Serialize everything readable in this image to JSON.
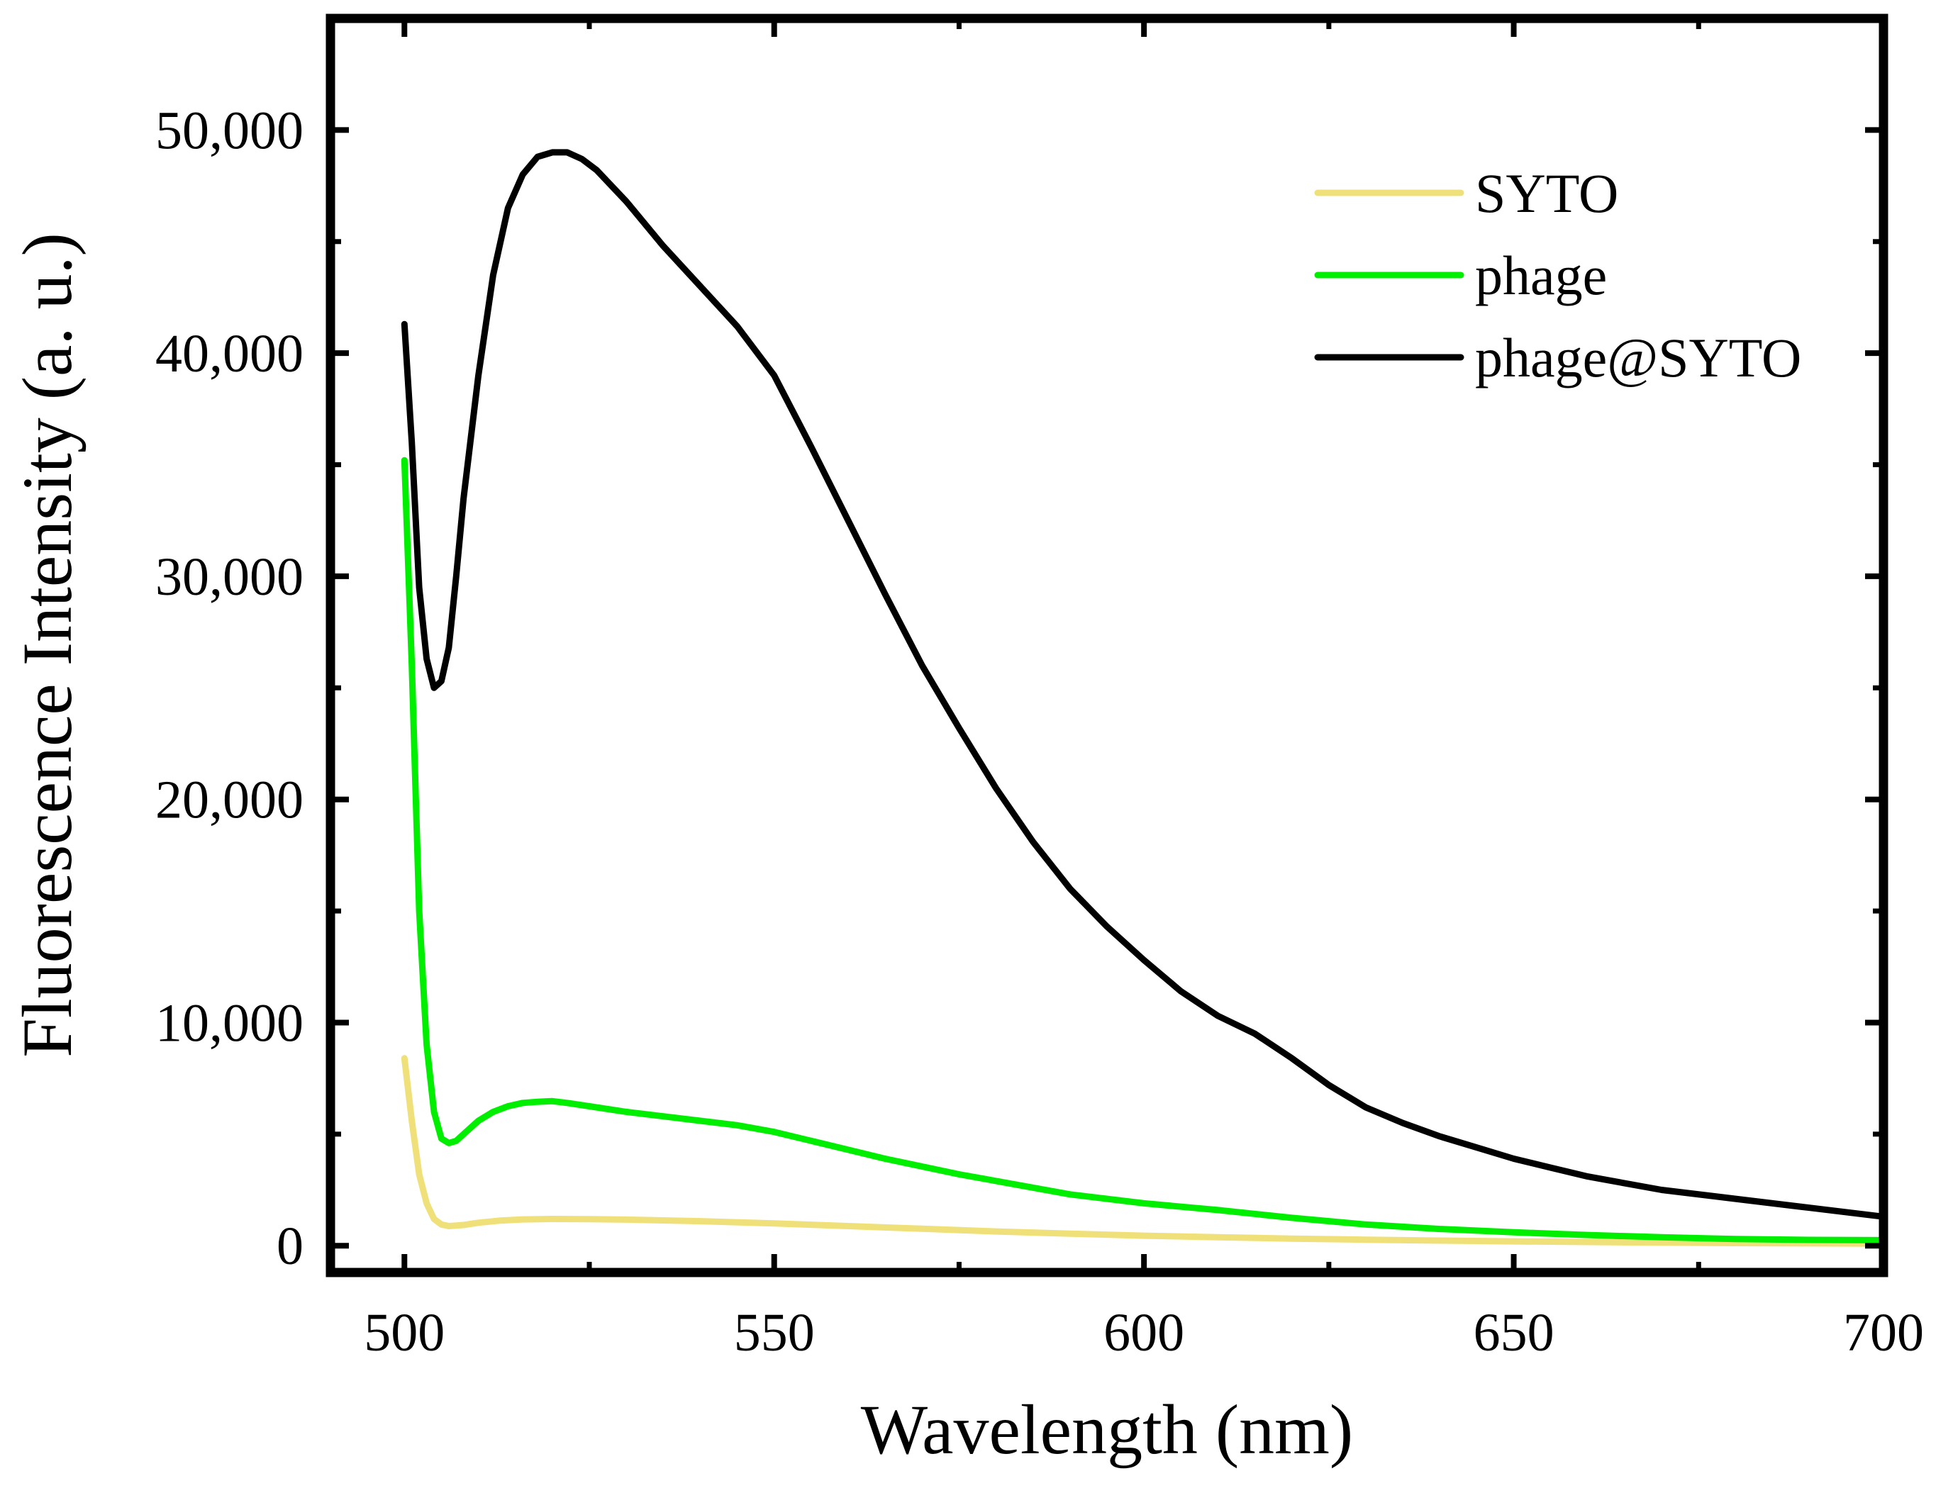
{
  "chart_data": {
    "type": "line",
    "title": "",
    "xlabel": "Wavelength (nm)",
    "ylabel": "Fluorescence Intensity (a. u.)",
    "xlim": [
      490,
      700
    ],
    "ylim": [
      -1200,
      55000
    ],
    "xticks": [
      {
        "value": 500,
        "label": "500"
      },
      {
        "value": 550,
        "label": "550"
      },
      {
        "value": 600,
        "label": "600"
      },
      {
        "value": 650,
        "label": "650"
      },
      {
        "value": 700,
        "label": "700"
      }
    ],
    "yticks": [
      {
        "value": 0,
        "label": "0"
      },
      {
        "value": 10000,
        "label": "10,000"
      },
      {
        "value": 20000,
        "label": "20,000"
      },
      {
        "value": 30000,
        "label": "30,000"
      },
      {
        "value": 40000,
        "label": "40,000"
      },
      {
        "value": 50000,
        "label": "50,000"
      }
    ],
    "grid": false,
    "legend_position": "top-right",
    "series": [
      {
        "name": "SYTO",
        "color": "#EFE07A",
        "x": [
          500,
          501,
          502,
          503,
          504,
          505,
          506,
          508,
          510,
          513,
          516,
          520,
          525,
          530,
          540,
          550,
          560,
          570,
          580,
          590,
          600,
          610,
          620,
          630,
          640,
          650,
          660,
          670,
          680,
          690,
          700
        ],
        "y": [
          8400,
          5600,
          3200,
          1900,
          1200,
          950,
          880,
          930,
          1030,
          1130,
          1180,
          1200,
          1190,
          1170,
          1100,
          1000,
          880,
          760,
          640,
          540,
          450,
          380,
          320,
          270,
          230,
          195,
          165,
          140,
          120,
          105,
          90
        ]
      },
      {
        "name": "phage",
        "color": "#00EE00",
        "x": [
          500,
          501,
          502,
          503,
          504,
          505,
          506,
          507,
          508,
          510,
          512,
          514,
          516,
          518,
          520,
          522,
          525,
          530,
          535,
          540,
          545,
          550,
          555,
          560,
          565,
          570,
          575,
          580,
          590,
          600,
          610,
          620,
          630,
          640,
          650,
          660,
          670,
          680,
          690,
          700
        ],
        "y": [
          35200,
          26000,
          15000,
          9000,
          6000,
          4800,
          4600,
          4700,
          5000,
          5600,
          6000,
          6250,
          6400,
          6450,
          6480,
          6400,
          6250,
          6000,
          5800,
          5600,
          5400,
          5100,
          4700,
          4300,
          3900,
          3550,
          3200,
          2900,
          2300,
          1900,
          1600,
          1250,
          950,
          750,
          600,
          480,
          380,
          300,
          260,
          250
        ]
      },
      {
        "name": "phage@SYTO",
        "color": "#000000",
        "x": [
          500,
          501,
          502,
          503,
          504,
          505,
          506,
          507,
          508,
          510,
          512,
          514,
          516,
          518,
          520,
          522,
          524,
          526,
          528,
          530,
          535,
          540,
          545,
          550,
          555,
          560,
          565,
          570,
          575,
          580,
          585,
          590,
          595,
          600,
          605,
          610,
          615,
          620,
          625,
          630,
          635,
          640,
          645,
          650,
          655,
          660,
          670,
          680,
          690,
          700
        ],
        "y": [
          41300,
          36000,
          29500,
          26300,
          25000,
          25300,
          26800,
          30000,
          33500,
          39000,
          43500,
          46500,
          48000,
          48800,
          49000,
          49000,
          48700,
          48200,
          47500,
          46800,
          44800,
          43000,
          41200,
          39000,
          35800,
          32500,
          29200,
          26000,
          23200,
          20500,
          18100,
          16000,
          14300,
          12800,
          11400,
          10300,
          9500,
          8400,
          7200,
          6200,
          5500,
          4900,
          4400,
          3900,
          3500,
          3100,
          2500,
          2100,
          1700,
          1300
        ]
      }
    ]
  }
}
